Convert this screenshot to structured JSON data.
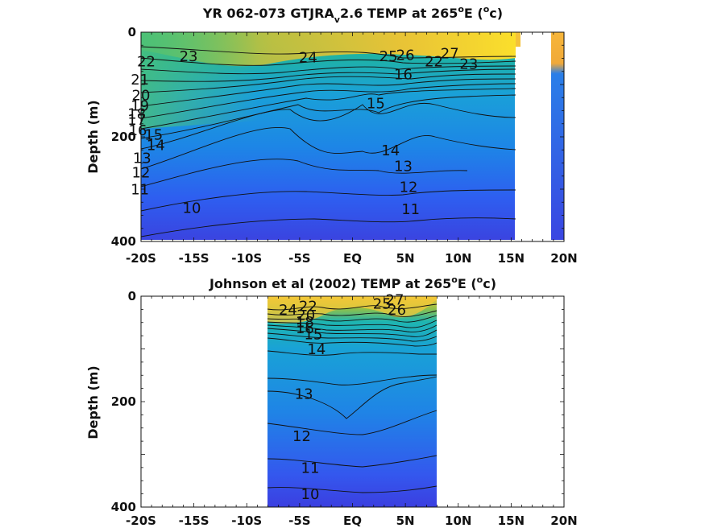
{
  "chart_data": [
    {
      "type": "heatmap",
      "panel": "top",
      "title_main": "YR 062-073 GTJRA",
      "title_sub": "v",
      "title_rest": "2.6 TEMP at 265",
      "title_sup": "o",
      "title_unit": "E (",
      "title_unit_sup": "o",
      "title_unit_end": "c)",
      "ylabel": "Depth (m)",
      "ylim": [
        400,
        0
      ],
      "xlim": [
        -20,
        20
      ],
      "x_tick_labels": [
        "-20S",
        "-15S",
        "-10S",
        "-5S",
        "EQ",
        "5N",
        "10N",
        "15N",
        "20N"
      ],
      "x_ticks": [
        -20,
        -15,
        -10,
        -5,
        0,
        5,
        10,
        15,
        20
      ],
      "y_tick_labels": [
        "0",
        "200",
        "400"
      ],
      "y_ticks": [
        0,
        200,
        400
      ],
      "colormap": "parula",
      "data_extent_lat": [
        -20,
        15
      ],
      "contour_levels": [
        10,
        11,
        12,
        13,
        14,
        15,
        16,
        17,
        18,
        19,
        20,
        21,
        22,
        23,
        24,
        25,
        26,
        27
      ],
      "contour_labels": [
        {
          "text": "22",
          "lat": -19.5,
          "depth": 65
        },
        {
          "text": "23",
          "lat": -15.5,
          "depth": 55
        },
        {
          "text": "24",
          "lat": -4.2,
          "depth": 58
        },
        {
          "text": "21",
          "lat": -20.1,
          "depth": 100
        },
        {
          "text": "20",
          "lat": -20.0,
          "depth": 130
        },
        {
          "text": "19",
          "lat": -20.1,
          "depth": 150
        },
        {
          "text": "18",
          "lat": -20.4,
          "depth": 165
        },
        {
          "text": "17",
          "lat": -20.4,
          "depth": 177
        },
        {
          "text": "16",
          "lat": -20.3,
          "depth": 197
        },
        {
          "text": "15",
          "lat": -18.8,
          "depth": 205
        },
        {
          "text": "14",
          "lat": -18.6,
          "depth": 225
        },
        {
          "text": "13",
          "lat": -19.9,
          "depth": 250
        },
        {
          "text": "12",
          "lat": -20.0,
          "depth": 278
        },
        {
          "text": "11",
          "lat": -20.1,
          "depth": 310
        },
        {
          "text": "10",
          "lat": -15.2,
          "depth": 345
        },
        {
          "text": "25",
          "lat": 3.4,
          "depth": 55
        },
        {
          "text": "26",
          "lat": 5.0,
          "depth": 53
        },
        {
          "text": "22",
          "lat": 7.7,
          "depth": 65
        },
        {
          "text": "27",
          "lat": 9.2,
          "depth": 50
        },
        {
          "text": "23",
          "lat": 11.0,
          "depth": 70
        },
        {
          "text": "16",
          "lat": 4.8,
          "depth": 90
        },
        {
          "text": "15",
          "lat": 2.2,
          "depth": 145
        },
        {
          "text": "14",
          "lat": 3.6,
          "depth": 235
        },
        {
          "text": "13",
          "lat": 4.8,
          "depth": 265
        },
        {
          "text": "12",
          "lat": 5.3,
          "depth": 305
        },
        {
          "text": "11",
          "lat": 5.5,
          "depth": 348
        }
      ]
    },
    {
      "type": "heatmap",
      "panel": "bottom",
      "title_main": "Johnson et al (2002) TEMP at 265",
      "title_sup": "o",
      "title_unit": "E (",
      "title_unit_sup": "o",
      "title_unit_end": "c)",
      "ylabel": "Depth (m)",
      "ylim": [
        400,
        0
      ],
      "xlim": [
        -20,
        20
      ],
      "x_tick_labels": [
        "-20S",
        "-15S",
        "-10S",
        "-5S",
        "EQ",
        "5N",
        "10N",
        "15N",
        "20N"
      ],
      "x_ticks": [
        -20,
        -15,
        -10,
        -5,
        0,
        5,
        10,
        15,
        20
      ],
      "y_tick_labels": [
        "0",
        "200",
        "400"
      ],
      "y_ticks": [
        0,
        200,
        400
      ],
      "colormap": "parula",
      "data_extent_lat": [
        -8,
        8
      ],
      "contour_levels": [
        10,
        11,
        12,
        13,
        14,
        15,
        16,
        17,
        18,
        19,
        20,
        21,
        22,
        23,
        24,
        25,
        26,
        27
      ],
      "contour_labels": [
        {
          "text": "24",
          "lat": -6.1,
          "depth": 35
        },
        {
          "text": "22",
          "lat": -4.2,
          "depth": 28
        },
        {
          "text": "20",
          "lat": -4.4,
          "depth": 45
        },
        {
          "text": "18",
          "lat": -4.5,
          "depth": 58
        },
        {
          "text": "16",
          "lat": -4.5,
          "depth": 70
        },
        {
          "text": "15",
          "lat": -3.7,
          "depth": 82
        },
        {
          "text": "14",
          "lat": -3.4,
          "depth": 110
        },
        {
          "text": "25",
          "lat": 2.8,
          "depth": 24
        },
        {
          "text": "27",
          "lat": 4.0,
          "depth": 16
        },
        {
          "text": "26",
          "lat": 4.2,
          "depth": 35
        },
        {
          "text": "13",
          "lat": -4.6,
          "depth": 195
        },
        {
          "text": "12",
          "lat": -4.8,
          "depth": 275
        },
        {
          "text": "11",
          "lat": -4.0,
          "depth": 335
        },
        {
          "text": "10",
          "lat": -4.0,
          "depth": 385
        }
      ]
    }
  ]
}
